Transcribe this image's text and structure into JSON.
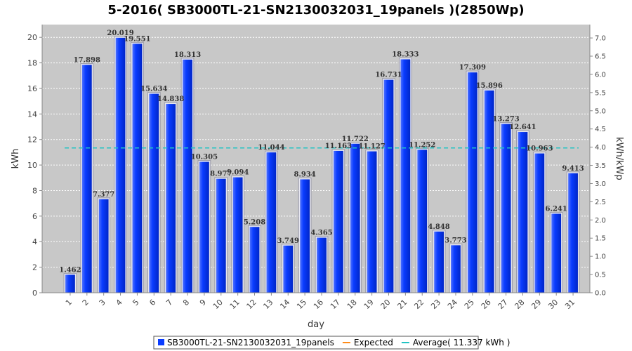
{
  "chart_data": {
    "type": "bar",
    "title": "5-2016( SB3000TL-21-SN2130032031_19panels )(2850Wp)",
    "xlabel": "day",
    "ylabel": "kWh",
    "y2label": "kWh/kWp",
    "categories": [
      "1",
      "2",
      "3",
      "4",
      "5",
      "6",
      "7",
      "8",
      "9",
      "10",
      "11",
      "12",
      "13",
      "14",
      "15",
      "16",
      "17",
      "18",
      "19",
      "20",
      "21",
      "22",
      "23",
      "24",
      "25",
      "26",
      "27",
      "28",
      "29",
      "30",
      "31"
    ],
    "series": [
      {
        "name": "SB3000TL-21-SN2130032031_19panels",
        "color": "#0a3cff",
        "values": [
          1.462,
          17.898,
          7.377,
          20.019,
          19.551,
          15.634,
          14.838,
          18.313,
          10.305,
          8.977,
          9.094,
          5.208,
          11.044,
          3.749,
          8.934,
          4.365,
          11.163,
          11.722,
          11.127,
          16.731,
          18.333,
          11.252,
          4.848,
          3.773,
          17.309,
          15.896,
          13.273,
          12.641,
          10.963,
          6.241,
          9.413
        ],
        "labels": [
          "1.462",
          "17.898",
          "7.377",
          "20.019",
          "19.551",
          "15.634",
          "14.838",
          "18.313",
          "10.305",
          "8.977",
          "9.094",
          "5.208",
          "11.044",
          "3.749",
          "8.934",
          "4.365",
          "11.163",
          "11.722",
          "11.127",
          "16.731",
          "18.333",
          "11.252",
          "4.848",
          "3.773",
          "17.309",
          "15.896",
          "13.273",
          "12.641",
          "10.963",
          "6.241",
          "9.413"
        ]
      }
    ],
    "average": 11.337,
    "ylim": [
      0,
      21
    ],
    "yticks": [
      "0",
      "2",
      "4",
      "6",
      "8",
      "10",
      "12",
      "14",
      "16",
      "18",
      "20"
    ],
    "y2lim": [
      0,
      7.368
    ],
    "y2ticks": [
      "0.0",
      "0.5",
      "1.0",
      "1.5",
      "2.0",
      "2.5",
      "3.0",
      "3.5",
      "4.0",
      "4.5",
      "5.0",
      "5.5",
      "6.0",
      "6.5",
      "7.0"
    ],
    "grid": true,
    "legend_position": "bottom",
    "legend": [
      {
        "label": "SB3000TL-21-SN2130032031_19panels",
        "kind": "box",
        "color": "#0a3cff"
      },
      {
        "label": "Expected",
        "kind": "line",
        "color": "#ff8c1a"
      },
      {
        "label": "Average( 11.337 kWh )",
        "kind": "line",
        "color": "#22c3c3"
      }
    ],
    "colors": {
      "plot_background": "#c8c8c8",
      "bar": "#0a3cff",
      "average_line": "#22c3c3"
    }
  }
}
